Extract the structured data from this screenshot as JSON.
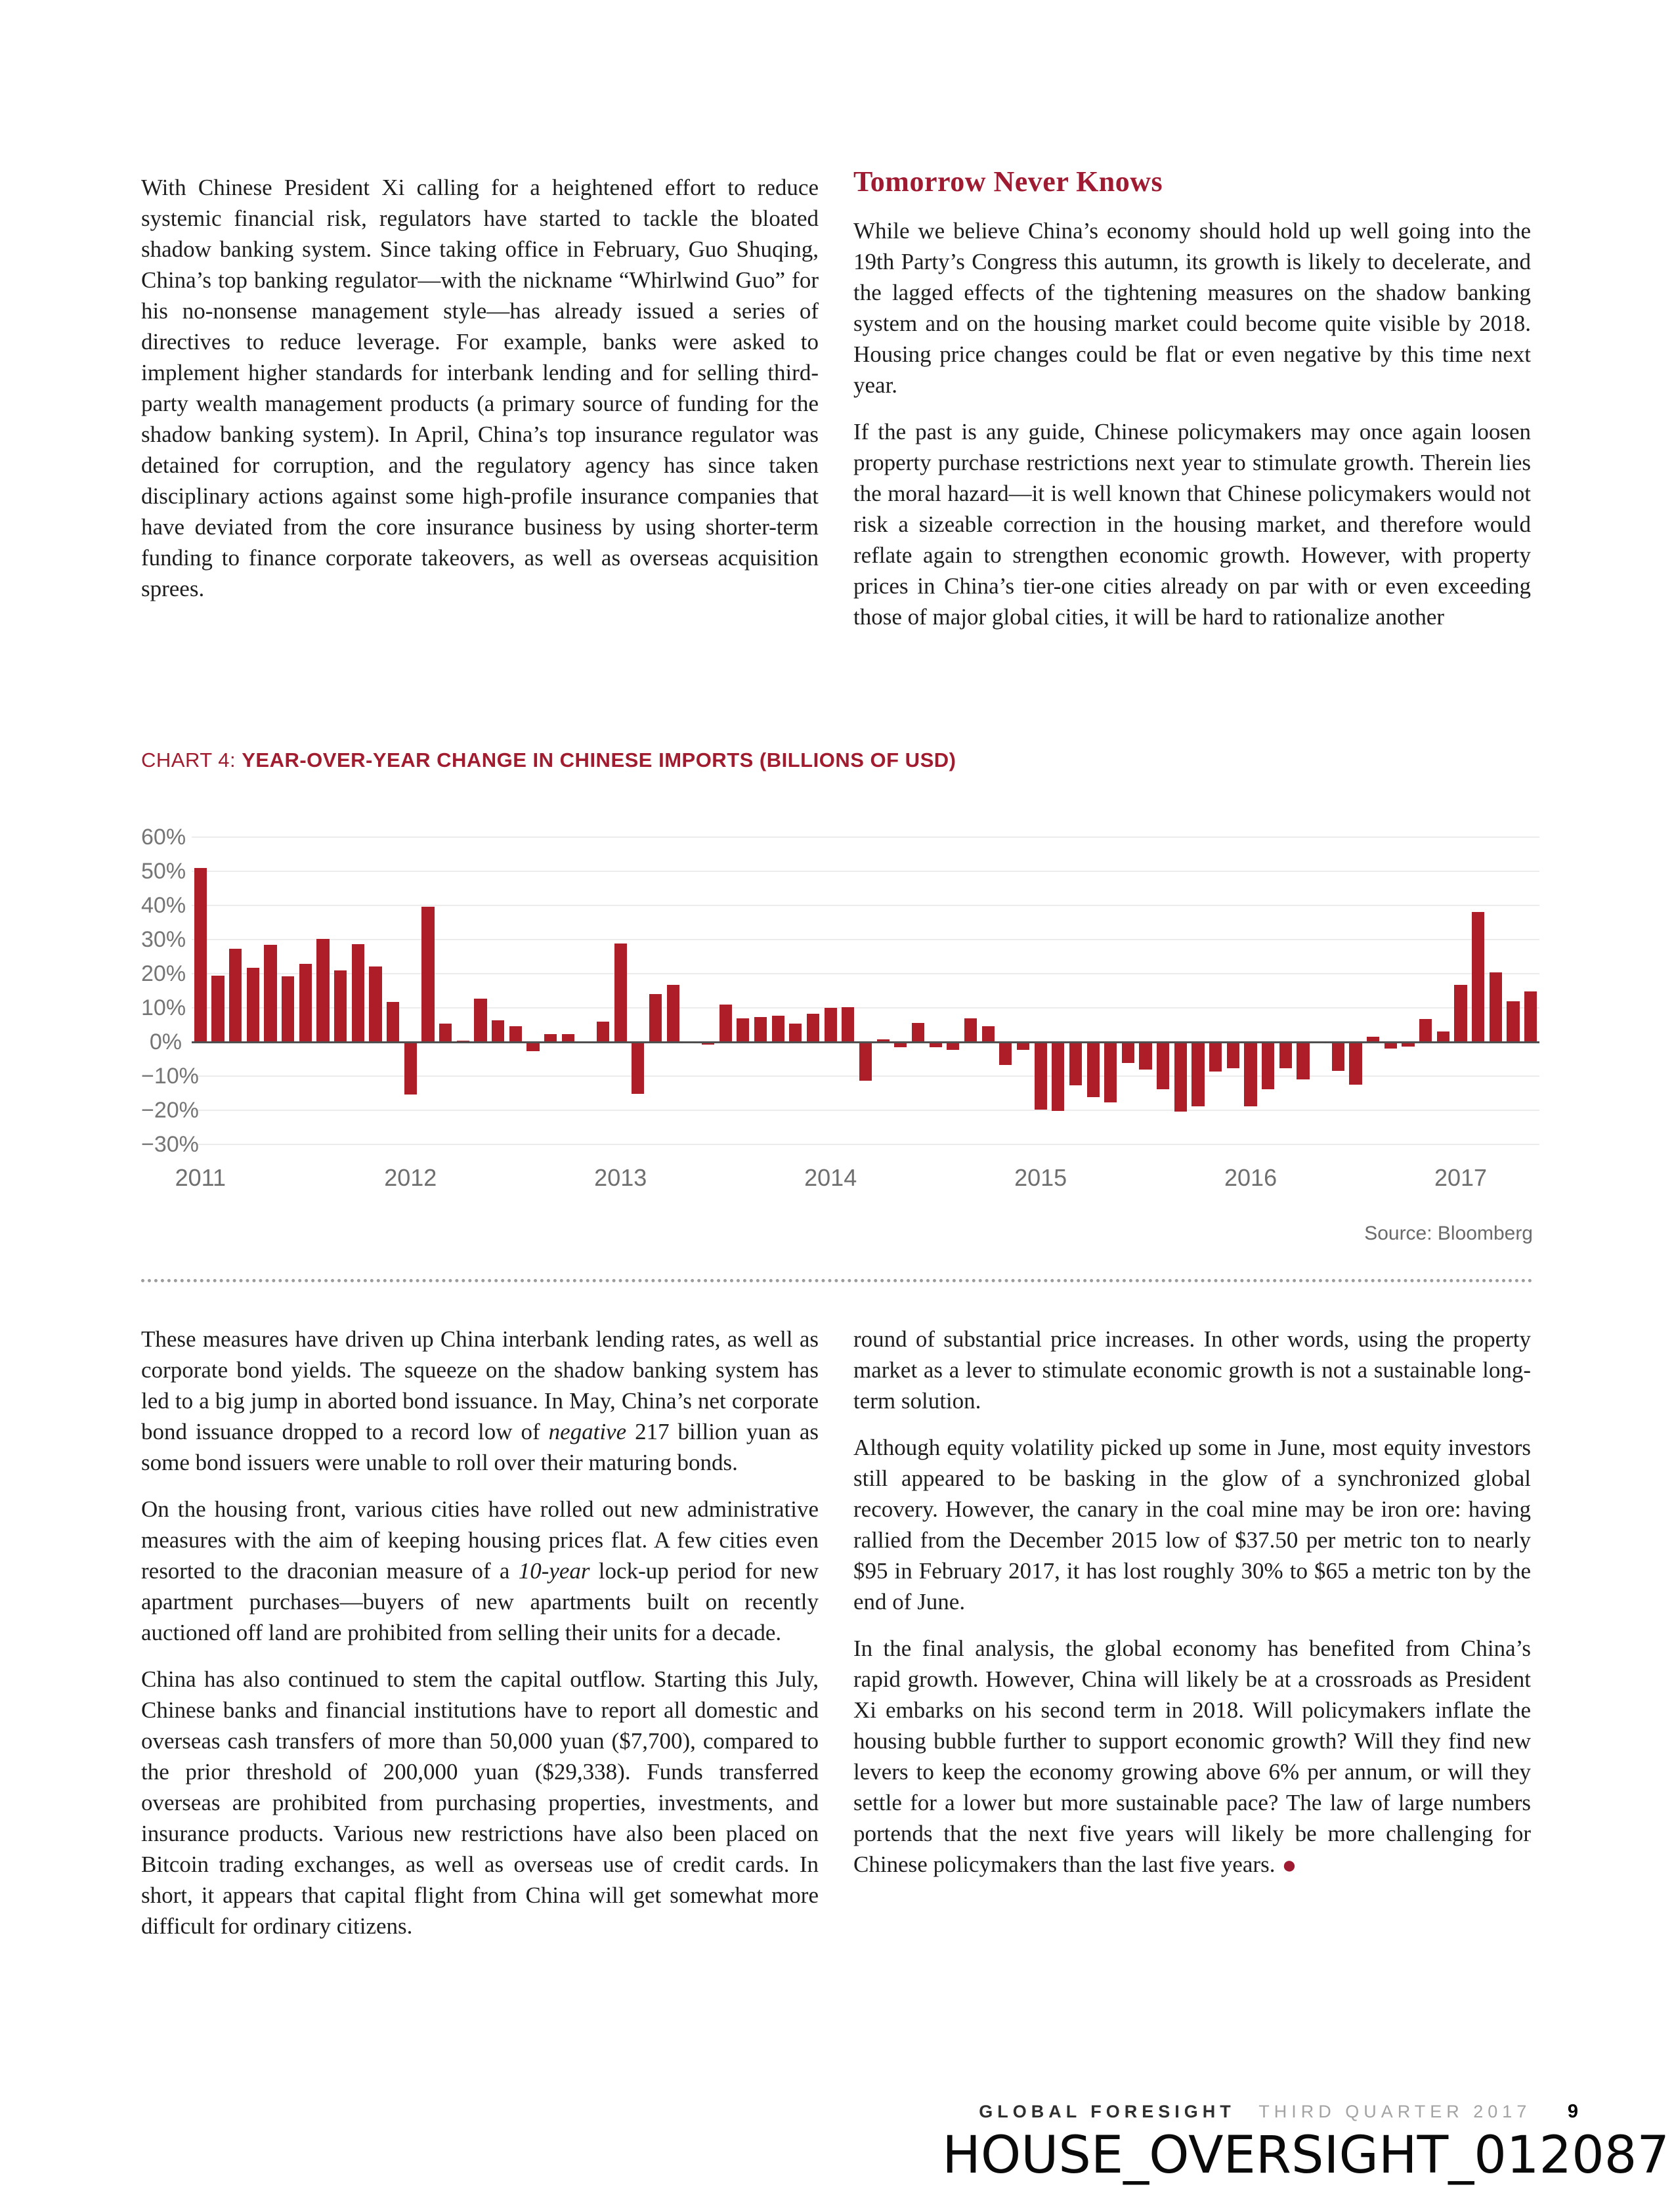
{
  "top_left": {
    "p1": "With Chinese President Xi calling for a heightened effort to reduce systemic financial risk, regulators have started to tackle the bloated shadow banking system. Since taking office in February, Guo Shuqing, China’s top banking regulator—with the nickname “Whirlwind Guo” for his no-nonsense management style—has already issued a series of directives to reduce leverage. For example, banks were asked to implement higher standards for interbank lending and for selling third-party wealth management products (a primary source of funding for the shadow banking system). In April, China’s top insurance regulator was detained for corruption, and the regulatory agency has since taken disciplinary actions against some high-profile insurance companies that have deviated from the core insurance business by using shorter-term funding to finance corporate takeovers, as well as overseas acquisition sprees."
  },
  "top_right": {
    "heading": "Tomorrow Never Knows",
    "p1": "While we believe China’s economy should hold up well going into the 19th Party’s Congress this autumn, its growth is likely to decelerate, and the lagged effects of the tightening measures on the shadow banking system and on the housing market could become quite visible by 2018. Housing price changes could be flat or even negative by this time next year.",
    "p2": "If the past is any guide, Chinese policymakers may once again loosen property purchase restrictions next year to stimulate growth. Therein lies the moral hazard—it is well known that Chinese policymakers would not risk a sizeable correction in the housing market, and therefore would reflate again to strengthen economic growth. However, with property prices in China’s tier-one cities already on par with or even exceeding those of major global cities, it will be hard to rationalize another"
  },
  "chart": {
    "label": "CHART 4: ",
    "title": "YEAR-OVER-YEAR CHANGE IN CHINESE IMPORTS (BILLIONS OF USD)",
    "source": "Source: Bloomberg"
  },
  "chart_data": {
    "type": "bar",
    "title": "CHART 4: YEAR-OVER-YEAR CHANGE IN CHINESE IMPORTS (BILLIONS OF USD)",
    "unit": "percent, year-over-year",
    "start": "2011-01",
    "frequency": "monthly",
    "values": [
      51.0,
      19.4,
      27.3,
      21.8,
      28.4,
      19.3,
      22.9,
      30.2,
      20.9,
      28.7,
      22.1,
      11.8,
      -15.3,
      39.6,
      5.3,
      0.3,
      12.7,
      6.3,
      4.7,
      -2.6,
      2.4,
      2.4,
      0.0,
      6.0,
      28.8,
      -15.2,
      14.1,
      16.8,
      -0.3,
      -0.7,
      10.9,
      7.0,
      7.4,
      7.6,
      5.3,
      8.3,
      10.0,
      10.1,
      -11.3,
      0.8,
      -1.6,
      5.5,
      -1.6,
      -2.4,
      7.0,
      4.6,
      -6.7,
      -2.4,
      -19.9,
      -20.2,
      -12.7,
      -16.2,
      -17.6,
      -6.1,
      -8.1,
      -13.8,
      -20.4,
      -18.8,
      -8.7,
      -7.6,
      -18.8,
      -13.8,
      -7.6,
      -10.9,
      -0.4,
      -8.4,
      -12.5,
      1.5,
      -1.9,
      -1.4,
      6.7,
      3.1,
      16.7,
      38.1,
      20.3,
      11.9,
      14.8
    ],
    "ylim": [
      -30,
      60
    ],
    "yticks": [
      60,
      50,
      40,
      30,
      20,
      10,
      0,
      -10,
      -20,
      -30
    ],
    "xticks": [
      {
        "label": "2011",
        "month_index": 0
      },
      {
        "label": "2012",
        "month_index": 12
      },
      {
        "label": "2013",
        "month_index": 24
      },
      {
        "label": "2014",
        "month_index": 36
      },
      {
        "label": "2015",
        "month_index": 48
      },
      {
        "label": "2016",
        "month_index": 60
      },
      {
        "label": "2017",
        "month_index": 72
      }
    ],
    "bar_color": "#ae1e28",
    "grid": true,
    "legend": "none",
    "source": "Source: Bloomberg"
  },
  "lower_left": {
    "p1_pre": "These measures have driven up China interbank lending rates, as well as corporate bond yields. The squeeze on the shadow banking system has led to a big jump in aborted bond issuance. In May, China’s net corporate bond issuance dropped to a record low of ",
    "p1_em": "negative",
    "p1_post": " 217 billion yuan as some bond issuers were unable to roll over their maturing bonds.",
    "p2_pre": "On the housing front, various cities have rolled out new administrative measures with the aim of keeping housing prices flat. A few cities even resorted to the draconian measure of a ",
    "p2_em": "10-year",
    "p2_post": " lock-up period for new apartment purchases—buyers of new apartments built on recently auctioned off land are prohibited from selling their units for a decade.",
    "p3": "China has also continued to stem the capital outflow. Starting this July, Chinese banks and financial institutions have to report all domestic and overseas cash transfers of more than 50,000 yuan ($7,700), compared to the prior threshold of 200,000 yuan ($29,338). Funds transferred overseas are prohibited from purchasing properties, investments, and insurance products. Various new restrictions have also been placed on Bitcoin trading exchanges, as well as overseas use of credit cards. In short, it appears that capital flight from China will get somewhat more difficult for ordinary citizens."
  },
  "lower_right": {
    "p1": "round of substantial price increases. In other words, using the property market as a lever to stimulate economic growth is not a sustainable long-term solution.",
    "p2": "Although equity volatility picked up some in June, most equity investors still appeared to be basking in the glow of a synchronized global recovery. However, the canary in the coal mine may be iron ore: having rallied from the December 2015 low of $37.50 per metric ton to nearly $95 in February 2017, it has lost roughly 30% to $65 a metric ton by the end of June.",
    "p3": "In the final analysis, the global economy has benefited from China’s rapid growth. However, China will likely be at a crossroads as President Xi embarks on his second term in 2018. Will policymakers inflate the housing bubble further to support economic growth? Will they find new levers to keep the economy growing above 6% per annum, or will they settle for a lower but more sustainable pace? The law of large numbers portends that the next five years will likely be more challenging for Chinese policymakers than the last five years.",
    "end_mark": "●"
  },
  "footer": {
    "brand": "GLOBAL FORESIGHT",
    "issue": "THIRD QUARTER 2017",
    "page_number": "9"
  },
  "bates_stamp": "HOUSE_OVERSIGHT_012087"
}
